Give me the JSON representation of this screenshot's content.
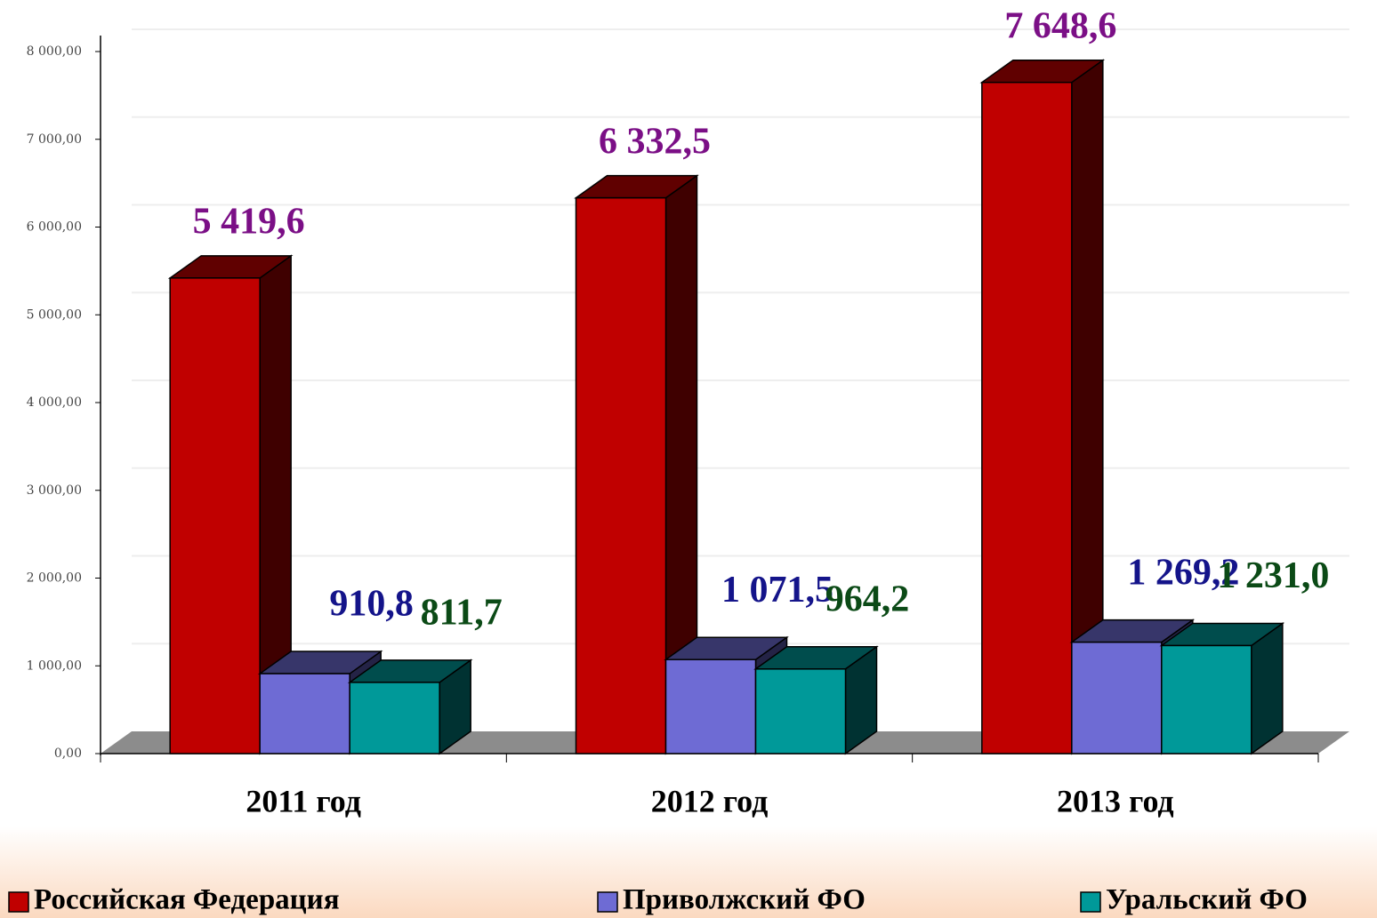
{
  "chart_data": {
    "type": "bar3d",
    "categories": [
      "2011 год",
      "2012 год",
      "2013 год"
    ],
    "series": [
      {
        "name": "Российская Федерация",
        "color": "#c00000",
        "values": [
          5419.6,
          6332.5,
          7648.6
        ],
        "value_labels": [
          "5 419,6",
          "6 332,5",
          "7 648,6"
        ],
        "label_color": "#7b0f86"
      },
      {
        "name": "Приволжский ФО",
        "color": "#6e6bd4",
        "values": [
          910.8,
          1071.5,
          1269.2
        ],
        "value_labels": [
          "910,8",
          "1 071,5",
          "1 269,2"
        ],
        "label_color": "#14148a"
      },
      {
        "name": "Уральский ФО",
        "color": "#009999",
        "values": [
          811.7,
          964.2,
          1231.0
        ],
        "value_labels": [
          "811,7",
          "964,2",
          "1 231,0"
        ],
        "label_color": "#0b4a16"
      }
    ],
    "ylim": [
      0,
      8000
    ],
    "yticks": [
      {
        "value": 0,
        "label": "0,00"
      },
      {
        "value": 1000,
        "label": "1 000,00"
      },
      {
        "value": 2000,
        "label": "2 000,00"
      },
      {
        "value": 3000,
        "label": "3 000,00"
      },
      {
        "value": 4000,
        "label": "4 000,00"
      },
      {
        "value": 5000,
        "label": "5 000,00"
      },
      {
        "value": 6000,
        "label": "6 000,00"
      },
      {
        "value": 7000,
        "label": "7 000,00"
      },
      {
        "value": 8000,
        "label": "8 000,00"
      }
    ],
    "grid": true,
    "legend": "bottom"
  }
}
